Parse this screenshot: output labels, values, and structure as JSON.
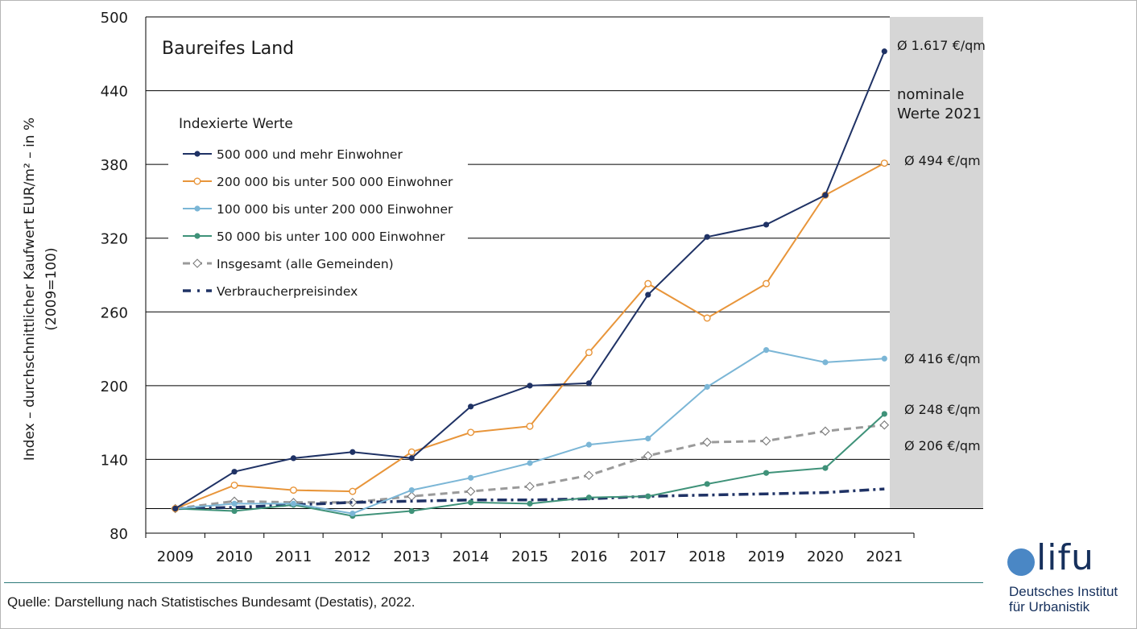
{
  "chart_data": {
    "type": "line",
    "title": "Baureifes Land",
    "ylabel": "Index – durchschnittlicher Kaufwert EUR/m² – in %",
    "ylabel2": "(2009=100)",
    "xlabel": "",
    "ylim": [
      80,
      500
    ],
    "yticks": [
      80,
      140,
      200,
      260,
      320,
      380,
      440,
      500
    ],
    "categories": [
      "2009",
      "2010",
      "2011",
      "2012",
      "2013",
      "2014",
      "2015",
      "2016",
      "2017",
      "2018",
      "2019",
      "2020",
      "2021"
    ],
    "legend_title": "Indexierte Werte",
    "legend_position": "upper-left",
    "grid": "horizontal",
    "series": [
      {
        "name": "500 000 und mehr Einwohner",
        "color": "#1f3265",
        "style": "solid-dot",
        "values": [
          100,
          130,
          141,
          146,
          141,
          183,
          200,
          202,
          274,
          321,
          331,
          355,
          472
        ]
      },
      {
        "name": "200 000 bis unter 500 000 Einwohner",
        "color": "#e8953a",
        "style": "solid-open",
        "values": [
          100,
          119,
          115,
          114,
          146,
          162,
          167,
          227,
          283,
          255,
          283,
          355,
          381
        ]
      },
      {
        "name": "100 000 bis unter 200 000 Einwohner",
        "color": "#7bb6d6",
        "style": "solid-dot",
        "values": [
          100,
          104,
          104,
          96,
          115,
          125,
          137,
          152,
          157,
          199,
          229,
          219,
          222
        ]
      },
      {
        "name": "50 000 bis unter 100 000 Einwohner",
        "color": "#3f9279",
        "style": "solid-dot",
        "values": [
          100,
          98,
          103,
          94,
          98,
          105,
          104,
          109,
          110,
          120,
          129,
          133,
          177
        ]
      },
      {
        "name": "Insgesamt (alle Gemeinden)",
        "color": "#9a9a9a",
        "style": "dashed-diamond",
        "values": [
          100,
          106,
          105,
          105,
          110,
          114,
          118,
          127,
          143,
          154,
          155,
          163,
          168
        ]
      },
      {
        "name": "Verbraucherpreisindex",
        "color": "#1f3265",
        "style": "dashdot",
        "values": [
          100,
          101,
          103,
          105,
          106,
          107,
          107,
          108,
          110,
          111,
          112,
          113,
          116
        ]
      }
    ],
    "shaded_column": "2021",
    "annotations": [
      "Ø 1.617 €/qm",
      "nominale Werte 2021",
      "Ø 494 €/qm",
      "Ø 416 €/qm",
      "Ø 248 €/qm",
      "Ø 206 €/qm"
    ]
  },
  "footer": {
    "source": "Quelle: Darstellung nach Statistisches Bundesamt (Destatis), 2022."
  },
  "logo": {
    "word": "lifu",
    "line1": "Deutsches Institut",
    "line2": "für Urbanistik",
    "color": "#16305c",
    "dot_color": "#4a87c5"
  }
}
